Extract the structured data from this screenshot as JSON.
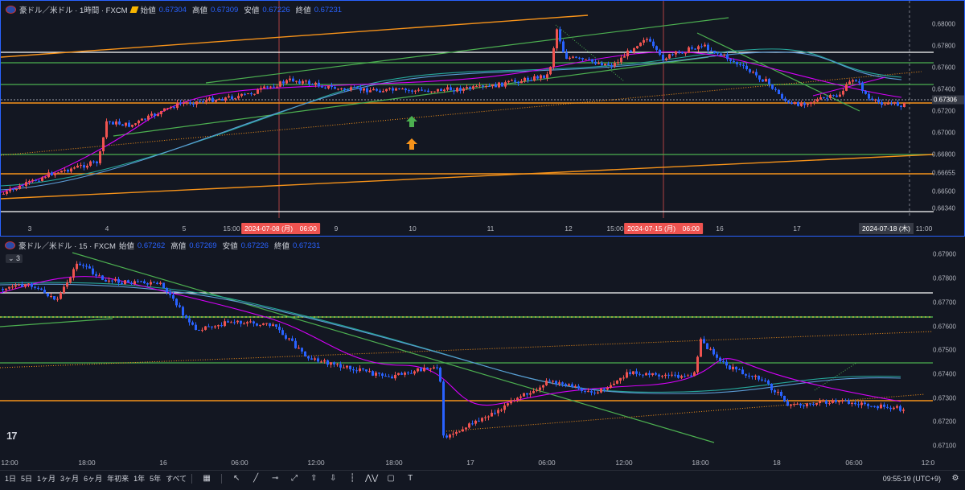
{
  "top": {
    "title": "豪ドル／米ドル · 1時間 · FXCM",
    "ohlc": [
      {
        "k": "始値",
        "v": "0.67304"
      },
      {
        "k": "高値",
        "v": "0.67309"
      },
      {
        "k": "安値",
        "v": "0.67226"
      },
      {
        "k": "終値",
        "v": "0.67231"
      }
    ],
    "price_labels": [
      "0.68000",
      "0.67800",
      "0.67600",
      "0.67400",
      "0.67306",
      "0.67200",
      "0.67000",
      "0.66800",
      "0.66655",
      "0.66500",
      "0.66340"
    ],
    "current_price": "0.67306",
    "x_labels": [
      "3",
      "4",
      "5",
      "15:00",
      "9",
      "10",
      "11",
      "12",
      "15:00",
      "16",
      "17",
      "11:00"
    ],
    "x_highlights": [
      "2024-07-08 (月)　06:00",
      "2024-07-15 (月)　06:00"
    ],
    "x_cursor": "2024-07-18 (木)"
  },
  "bottom": {
    "title": "豪ドル／米ドル · 15 · FXCM",
    "ohlc": [
      {
        "k": "始値",
        "v": "0.67262"
      },
      {
        "k": "高値",
        "v": "0.67269"
      },
      {
        "k": "安値",
        "v": "0.67226"
      },
      {
        "k": "終値",
        "v": "0.67231"
      }
    ],
    "collapse_count": "3",
    "price_labels": [
      "0.67900",
      "0.67800",
      "0.67700",
      "0.67600",
      "0.67500",
      "0.67400",
      "0.67300",
      "0.67200",
      "0.67100"
    ],
    "x_labels": [
      "12:00",
      "18:00",
      "16",
      "06:00",
      "12:00",
      "18:00",
      "17",
      "06:00",
      "12:00",
      "18:00",
      "18",
      "06:00",
      "12:0"
    ]
  },
  "footer": {
    "timeframes": [
      "1日",
      "5日",
      "1ヶ月",
      "3ヶ月",
      "6ヶ月",
      "年初来",
      "1年",
      "5年",
      "すべて"
    ],
    "clock": "09:55:19 (UTC+9)"
  },
  "colors": {
    "up": "#ef5350",
    "down": "#2962ff",
    "orange": "#f7931a",
    "green": "#4caf50",
    "white": "#ffffff",
    "cyan": "#26a69a",
    "magenta": "#d500f9"
  }
}
